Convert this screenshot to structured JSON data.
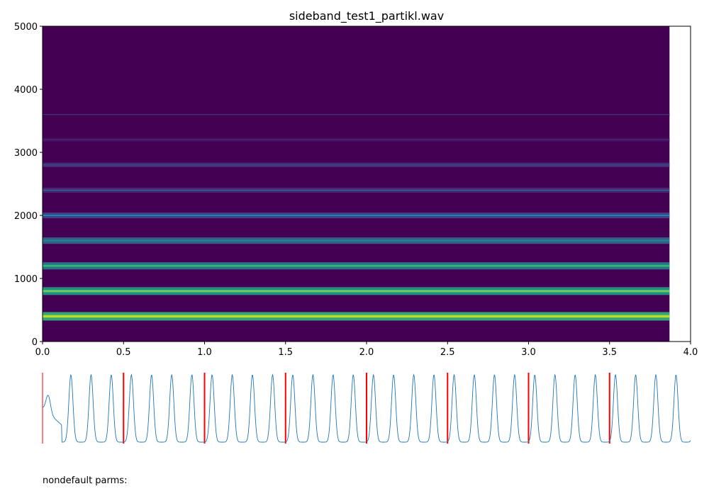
{
  "chart_data": [
    {
      "type": "heatmap",
      "title": "sideband_test1_partikl.wav",
      "xlabel": "",
      "ylabel": "",
      "xlim": [
        0.0,
        4.0
      ],
      "ylim": [
        0,
        5000
      ],
      "x_ticks": [
        "0.0",
        "0.5",
        "1.0",
        "1.5",
        "2.0",
        "2.5",
        "3.0",
        "3.5",
        "4.0"
      ],
      "y_ticks": [
        "0",
        "1000",
        "2000",
        "3000",
        "4000",
        "5000"
      ],
      "data_x_end": 3.87,
      "grid": false,
      "background_color": "#440154",
      "harmonic_bands": [
        {
          "freq": 400,
          "color": "#b5de2b",
          "edge_color": "#35b779"
        },
        {
          "freq": 800,
          "color": "#6ccd5a",
          "edge_color": "#1f9e89"
        },
        {
          "freq": 1200,
          "color": "#35b779",
          "edge_color": "#26828e"
        },
        {
          "freq": 1600,
          "color": "#26828e",
          "edge_color": "#31688e"
        },
        {
          "freq": 2000,
          "color": "#2c7fb8",
          "edge_color": "#3e4a89"
        },
        {
          "freq": 2400,
          "color": "#31688e",
          "edge_color": "#482878"
        },
        {
          "freq": 2800,
          "color": "#3e4a89",
          "edge_color": "#46327e"
        },
        {
          "freq": 3200,
          "color": "#482878",
          "edge_color": "#471063"
        },
        {
          "freq": 3600,
          "color": "#46327e",
          "edge_color": "#440154"
        }
      ]
    },
    {
      "type": "line",
      "title": "",
      "xlim": [
        0.0,
        4.0
      ],
      "peak_period": 0.1245,
      "first_peak": 0.175,
      "markers": [
        0.0,
        0.5,
        1.0,
        1.5,
        2.0,
        2.5,
        3.0,
        3.5
      ],
      "line_color": "#1f77b4",
      "marker_color": "#ff0000"
    }
  ],
  "footer": {
    "text": "nondefault parms:"
  }
}
